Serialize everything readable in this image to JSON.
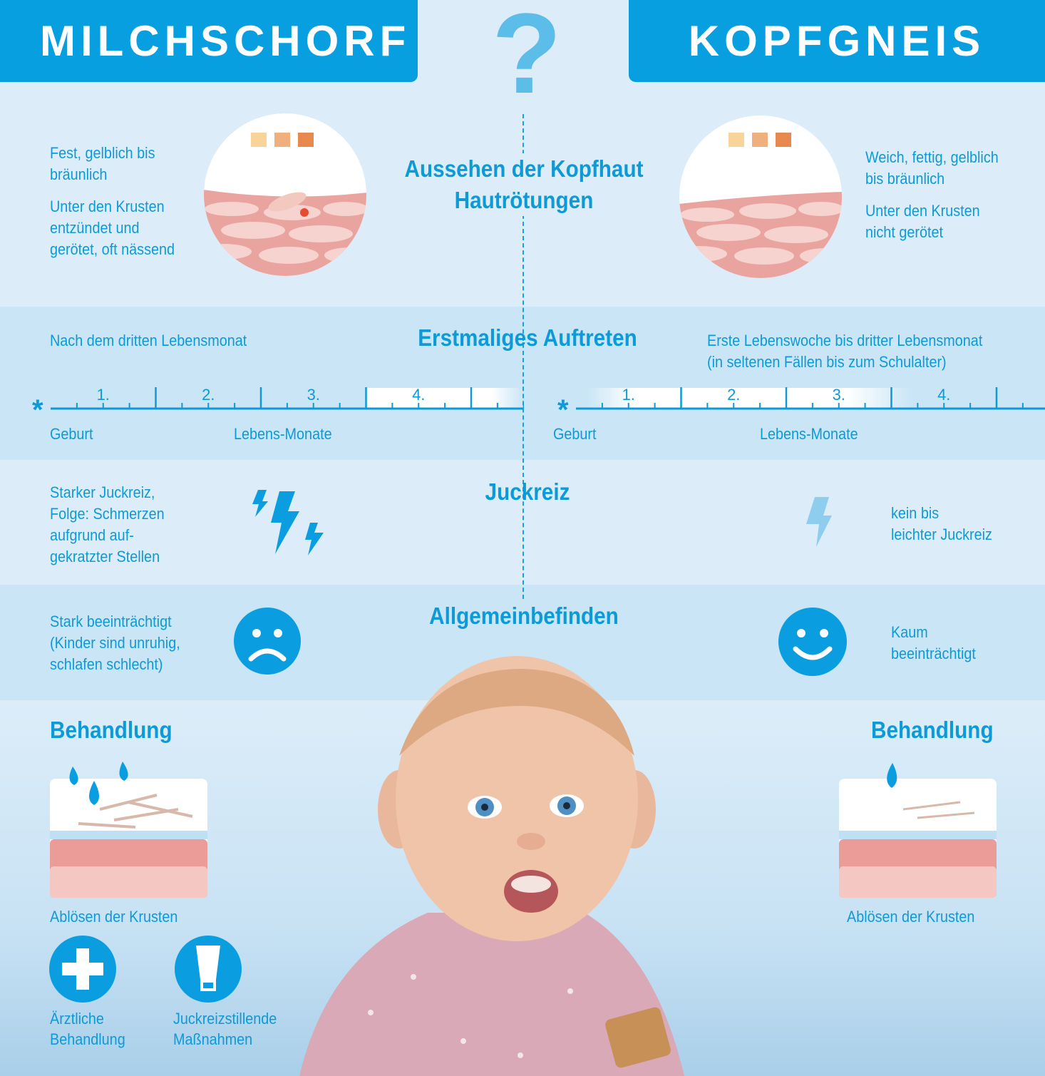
{
  "header": {
    "left_title": "MILCHSCHORF",
    "right_title": "KOPFGNEIS",
    "center_symbol": "?"
  },
  "colors": {
    "brand_blue": "#079fe0",
    "text_blue": "#0d9ad6",
    "band": "#c9e5f6",
    "background": "#dcedf9"
  },
  "aussehen": {
    "title": "Aussehen der Kopfhaut",
    "subtitle": "Hautrötungen",
    "left": {
      "line1": "Fest, gelblich bis bräunlich",
      "line2": "Unter den Krusten entzündet und gerötet, oft nässend"
    },
    "right": {
      "line1": "Weich, fettig, gelblich bis bräunlich",
      "line2": "Unter den Krusten nicht gerötet"
    },
    "swatches": [
      "#f8d49a",
      "#f0b07e",
      "#e8894e"
    ]
  },
  "auftreten": {
    "title": "Erstmaliges Auftreten",
    "left": {
      "text": "Nach dem dritten Lebensmonat",
      "start_label": "Geburt",
      "axis_label": "Lebens-Monate",
      "tick_labels": [
        "1.",
        "2.",
        "3.",
        "4."
      ],
      "highlight_months": [
        3,
        4.5
      ]
    },
    "right": {
      "text": "Erste Lebenswoche bis dritter Lebensmonat",
      "text2": "(in seltenen Fällen bis zum Schulalter)",
      "start_label": "Geburt",
      "axis_label": "Lebens-Monate",
      "tick_labels": [
        "1.",
        "2.",
        "3.",
        "4."
      ],
      "highlight_months": [
        0.1,
        3.2
      ]
    }
  },
  "juckreiz": {
    "title": "Juckreiz",
    "left": "Starker Juckreiz, Folge: Schmerzen aufgrund auf-gekratzter Stellen",
    "right_l1": "kein bis",
    "right_l2": "leichter Juckreiz",
    "left_icon": "lightning-icon-strong",
    "right_icon": "lightning-icon-faint"
  },
  "befinden": {
    "title": "Allgemeinbefinden",
    "left": "Stark beeinträchtigt (Kinder sind unruhig, schlafen schlecht)",
    "right_l1": "Kaum",
    "right_l2": "beeinträchtigt",
    "left_icon": "sad-face-icon",
    "right_icon": "happy-face-icon"
  },
  "behandlung": {
    "left": {
      "title": "Behandlung",
      "caption": "Ablösen der Krusten",
      "item1_l1": "Ärztliche",
      "item1_l2": "Behandlung",
      "item2_l1": "Juckreizstillende",
      "item2_l2": "Maßnahmen"
    },
    "right": {
      "title": "Behandlung",
      "caption": "Ablösen der Krusten"
    }
  }
}
